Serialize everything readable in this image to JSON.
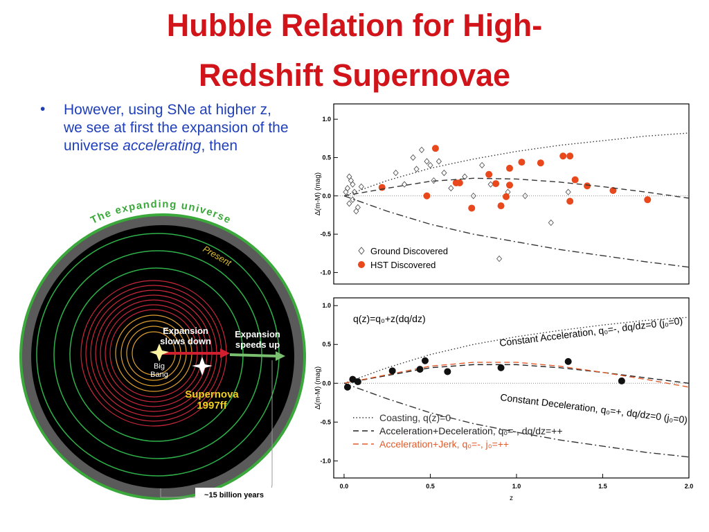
{
  "title_lines": [
    "Hubble Relation for High-",
    "Redshift Supernovae"
  ],
  "bullet": {
    "text_before": "However, using SNe at higher z,      we see at first the expansion of the universe ",
    "emphasis": "accelerating",
    "text_after": ", then"
  },
  "illustration": {
    "arc_title": "The expanding universe",
    "present": "Present",
    "slows": [
      "Expansion",
      "slows down"
    ],
    "speeds": [
      "Expansion",
      "speeds up"
    ],
    "origin": [
      "Big",
      "Bang"
    ],
    "supernova": [
      "Supernova",
      "1997ff"
    ],
    "age": "~15 billion years"
  },
  "chart_data": [
    {
      "type": "scatter",
      "ylabel": "Δ(m-M) (mag)",
      "xlim": [
        -0.06,
        2.0
      ],
      "ylim": [
        -1.15,
        1.2
      ],
      "yticks": [
        {
          "value": 1,
          "label": "1.0"
        },
        0.5,
        {
          "value": 0,
          "label": "0.0"
        },
        -0.5,
        {
          "value": -1,
          "label": "-1.0"
        }
      ],
      "zero_line": true,
      "series": [
        {
          "name": "Ground Discovered",
          "marker": "diamond",
          "color": "#555555",
          "x": [
            0.01,
            0.02,
            0.03,
            0.03,
            0.04,
            0.05,
            0.05,
            0.06,
            0.07,
            0.08,
            0.1,
            0.3,
            0.35,
            0.4,
            0.42,
            0.45,
            0.48,
            0.5,
            0.52,
            0.55,
            0.58,
            0.62,
            0.7,
            0.75,
            0.8,
            0.85,
            0.9,
            0.95,
            1.05,
            1.2,
            1.3
          ],
          "values": [
            0.05,
            0.1,
            -0.1,
            0.25,
            0.2,
            -0.05,
            0.15,
            0.05,
            -0.2,
            -0.15,
            0.12,
            0.3,
            0.15,
            0.5,
            0.35,
            0.6,
            0.45,
            0.4,
            0.2,
            0.45,
            0.3,
            0.1,
            0.25,
            0.0,
            0.4,
            0.15,
            -0.82,
            0.05,
            0.0,
            -0.35,
            0.05
          ]
        },
        {
          "name": "HST Discovered",
          "marker": "circle",
          "color": "#e8481c",
          "x": [
            0.22,
            0.48,
            0.53,
            0.65,
            0.67,
            0.74,
            0.84,
            0.88,
            0.91,
            0.94,
            0.96,
            0.96,
            1.03,
            1.14,
            1.27,
            1.31,
            1.31,
            1.34,
            1.41,
            1.56,
            1.76
          ],
          "values": [
            0.11,
            0.0,
            0.62,
            0.17,
            0.17,
            -0.16,
            0.28,
            0.16,
            -0.13,
            -0.01,
            0.14,
            0.36,
            0.44,
            0.43,
            0.52,
            0.52,
            -0.07,
            0.21,
            0.13,
            0.07,
            -0.05
          ]
        },
        {
          "style": "dotted",
          "color": "#333333",
          "x": [
            0,
            0.25,
            0.5,
            0.75,
            1,
            1.25,
            1.5,
            1.75,
            2
          ],
          "values": [
            0,
            0.2,
            0.36,
            0.48,
            0.58,
            0.66,
            0.72,
            0.78,
            0.82
          ]
        },
        {
          "style": "dashed",
          "color": "#333333",
          "x": [
            0,
            0.25,
            0.5,
            0.75,
            1,
            1.25,
            1.5,
            1.75,
            2
          ],
          "values": [
            0,
            0.1,
            0.19,
            0.23,
            0.22,
            0.18,
            0.12,
            0.05,
            -0.03
          ]
        },
        {
          "style": "dashdot",
          "color": "#333333",
          "x": [
            0,
            0.25,
            0.5,
            0.75,
            1,
            1.25,
            1.5,
            1.75,
            2
          ],
          "values": [
            0,
            -0.2,
            -0.37,
            -0.5,
            -0.6,
            -0.7,
            -0.78,
            -0.86,
            -0.93
          ]
        }
      ]
    },
    {
      "type": "scatter",
      "ylabel": "Δ(m-M) (mag)",
      "xlabel": "z",
      "xlim": [
        -0.06,
        2.0
      ],
      "ylim": [
        -1.22,
        1.1
      ],
      "xticks": [
        {
          "value": 0,
          "label": "0.0"
        },
        0.5,
        {
          "value": 1,
          "label": "1.0"
        },
        1.5,
        {
          "value": 2,
          "label": "2.0"
        }
      ],
      "yticks": [
        {
          "value": 1,
          "label": "1.0"
        },
        0.5,
        {
          "value": 0,
          "label": "0.0"
        },
        -0.5,
        {
          "value": -1,
          "label": "-1.0"
        }
      ],
      "zero_line": true,
      "annotations": [
        "q(z)=q₀+z(dq/dz)",
        "Constant Acceleration, q₀=-, dq/dz=0 (j₀=0)",
        "Constant Deceleration, q₀=+, dq/dz=0 (j₀=0)"
      ],
      "series": [
        {
          "name": "Coasting, q(z)=0",
          "style": "dotted",
          "color": "#333333",
          "x": [
            0,
            0.25,
            0.5,
            0.75,
            1,
            1.25,
            1.5,
            1.75,
            2
          ],
          "values": [
            0,
            0.2,
            0.37,
            0.5,
            0.6,
            0.68,
            0.75,
            0.81,
            0.85
          ]
        },
        {
          "name": "Acceleration+Deceleration, q₀=-, dq/dz=++",
          "style": "dashed",
          "color": "#222222",
          "x": [
            0,
            0.25,
            0.5,
            0.75,
            1,
            1.25,
            1.5,
            1.75,
            2
          ],
          "values": [
            0,
            0.1,
            0.2,
            0.24,
            0.24,
            0.2,
            0.14,
            0.07,
            0.0
          ]
        },
        {
          "name": "Acceleration+Jerk, q₀=-, j₀=++",
          "style": "dashed",
          "color": "#e05a2a",
          "x": [
            0,
            0.25,
            0.5,
            0.75,
            1,
            1.25,
            1.5,
            1.75,
            2
          ],
          "values": [
            0,
            0.11,
            0.22,
            0.27,
            0.27,
            0.22,
            0.14,
            0.05,
            -0.05
          ]
        },
        {
          "style": "dashdot",
          "color": "#333333",
          "x": [
            0,
            0.25,
            0.5,
            0.75,
            1,
            1.25,
            1.5,
            1.75,
            2
          ],
          "values": [
            0,
            -0.2,
            -0.38,
            -0.52,
            -0.63,
            -0.73,
            -0.81,
            -0.89,
            -0.95
          ]
        },
        {
          "marker": "circle",
          "color": "#111111",
          "x": [
            0.02,
            0.05,
            0.08,
            0.28,
            0.44,
            0.47,
            0.6,
            0.91,
            1.3,
            1.61
          ],
          "values": [
            -0.05,
            0.05,
            0.02,
            0.16,
            0.18,
            0.29,
            0.15,
            0.2,
            0.28,
            0.03
          ]
        }
      ]
    }
  ]
}
